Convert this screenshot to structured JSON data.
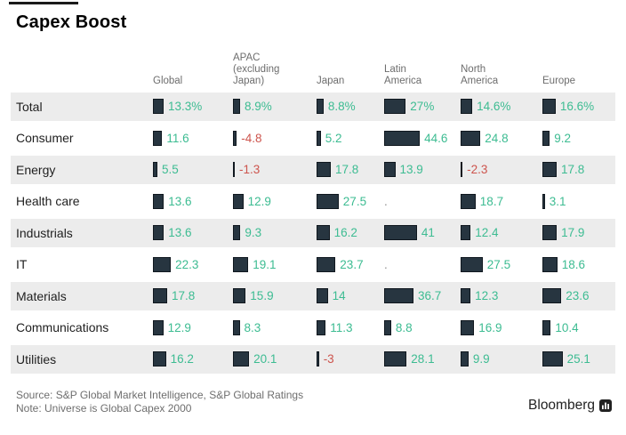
{
  "title": "Capex Boost",
  "columns": [
    "Global",
    "APAC (excluding Japan)",
    "Japan",
    "Latin America",
    "North America",
    "Europe"
  ],
  "rows": [
    {
      "label": "Total",
      "cells": [
        {
          "text": "13.3%",
          "v": 13.3
        },
        {
          "text": "8.9%",
          "v": 8.9
        },
        {
          "text": "8.8%",
          "v": 8.8
        },
        {
          "text": "27%",
          "v": 27
        },
        {
          "text": "14.6%",
          "v": 14.6
        },
        {
          "text": "16.6%",
          "v": 16.6
        }
      ]
    },
    {
      "label": "Consumer",
      "cells": [
        {
          "text": "11.6",
          "v": 11.6
        },
        {
          "text": "-4.8",
          "v": -4.8
        },
        {
          "text": "5.2",
          "v": 5.2
        },
        {
          "text": "44.6",
          "v": 44.6
        },
        {
          "text": "24.8",
          "v": 24.8
        },
        {
          "text": "9.2",
          "v": 9.2
        }
      ]
    },
    {
      "label": "Energy",
      "cells": [
        {
          "text": "5.5",
          "v": 5.5
        },
        {
          "text": "-1.3",
          "v": -1.3
        },
        {
          "text": "17.8",
          "v": 17.8
        },
        {
          "text": "13.9",
          "v": 13.9
        },
        {
          "text": "-2.3",
          "v": -2.3
        },
        {
          "text": "17.8",
          "v": 17.8
        }
      ]
    },
    {
      "label": "Health care",
      "cells": [
        {
          "text": "13.6",
          "v": 13.6
        },
        {
          "text": "12.9",
          "v": 12.9
        },
        {
          "text": "27.5",
          "v": 27.5
        },
        {
          "text": ".",
          "v": null
        },
        {
          "text": "18.7",
          "v": 18.7
        },
        {
          "text": "3.1",
          "v": 3.1
        }
      ]
    },
    {
      "label": "Industrials",
      "cells": [
        {
          "text": "13.6",
          "v": 13.6
        },
        {
          "text": "9.3",
          "v": 9.3
        },
        {
          "text": "16.2",
          "v": 16.2
        },
        {
          "text": "41",
          "v": 41
        },
        {
          "text": "12.4",
          "v": 12.4
        },
        {
          "text": "17.9",
          "v": 17.9
        }
      ]
    },
    {
      "label": "IT",
      "cells": [
        {
          "text": "22.3",
          "v": 22.3
        },
        {
          "text": "19.1",
          "v": 19.1
        },
        {
          "text": "23.7",
          "v": 23.7
        },
        {
          "text": ".",
          "v": null
        },
        {
          "text": "27.5",
          "v": 27.5
        },
        {
          "text": "18.6",
          "v": 18.6
        }
      ]
    },
    {
      "label": "Materials",
      "cells": [
        {
          "text": "17.8",
          "v": 17.8
        },
        {
          "text": "15.9",
          "v": 15.9
        },
        {
          "text": "14",
          "v": 14
        },
        {
          "text": "36.7",
          "v": 36.7
        },
        {
          "text": "12.3",
          "v": 12.3
        },
        {
          "text": "23.6",
          "v": 23.6
        }
      ]
    },
    {
      "label": "Communications",
      "cells": [
        {
          "text": "12.9",
          "v": 12.9
        },
        {
          "text": "8.3",
          "v": 8.3
        },
        {
          "text": "11.3",
          "v": 11.3
        },
        {
          "text": "8.8",
          "v": 8.8
        },
        {
          "text": "16.9",
          "v": 16.9
        },
        {
          "text": "10.4",
          "v": 10.4
        }
      ]
    },
    {
      "label": "Utilities",
      "cells": [
        {
          "text": "16.2",
          "v": 16.2
        },
        {
          "text": "20.1",
          "v": 20.1
        },
        {
          "text": "-3",
          "v": -3
        },
        {
          "text": "28.1",
          "v": 28.1
        },
        {
          "text": "9.9",
          "v": 9.9
        },
        {
          "text": "25.1",
          "v": 25.1
        }
      ]
    }
  ],
  "chart_data": {
    "type": "bar",
    "title": "Capex Boost",
    "xlabel": "",
    "ylabel": "",
    "legend_position": "none",
    "grid": false,
    "note": "Horizontal bar table; bar length proportional to value; '.' means no data shown",
    "categories": [
      "Total",
      "Consumer",
      "Energy",
      "Health care",
      "Industrials",
      "IT",
      "Materials",
      "Communications",
      "Utilities"
    ],
    "series": [
      {
        "name": "Global",
        "values": [
          13.3,
          11.6,
          5.5,
          13.6,
          13.6,
          22.3,
          17.8,
          12.9,
          16.2
        ]
      },
      {
        "name": "APAC (excluding Japan)",
        "values": [
          8.9,
          -4.8,
          -1.3,
          12.9,
          9.3,
          19.1,
          15.9,
          8.3,
          20.1
        ]
      },
      {
        "name": "Japan",
        "values": [
          8.8,
          5.2,
          17.8,
          27.5,
          16.2,
          23.7,
          14,
          11.3,
          -3
        ]
      },
      {
        "name": "Latin America",
        "values": [
          27,
          44.6,
          13.9,
          null,
          41,
          null,
          36.7,
          8.8,
          28.1
        ]
      },
      {
        "name": "North America",
        "values": [
          14.6,
          24.8,
          -2.3,
          18.7,
          12.4,
          27.5,
          12.3,
          16.9,
          9.9
        ]
      },
      {
        "name": "Europe",
        "values": [
          16.6,
          9.2,
          17.8,
          3.1,
          17.9,
          18.6,
          23.6,
          10.4,
          25.1
        ]
      }
    ]
  },
  "footer": {
    "source": "Source: S&P Global Market Intelligence, S&P Global Ratings",
    "note": "Note: Universe is Global Capex 2000"
  },
  "brand": {
    "name": "Bloomberg",
    "icon": "bloomberg-mark-icon"
  },
  "colors": {
    "positive": "#3dbc92",
    "negative": "#cd544d",
    "bar_fill": "#273540",
    "bar_border": "#10181f",
    "stripe": "#ececec",
    "header_text": "#6d6d6d",
    "footer_text": "#6e6e6e"
  }
}
